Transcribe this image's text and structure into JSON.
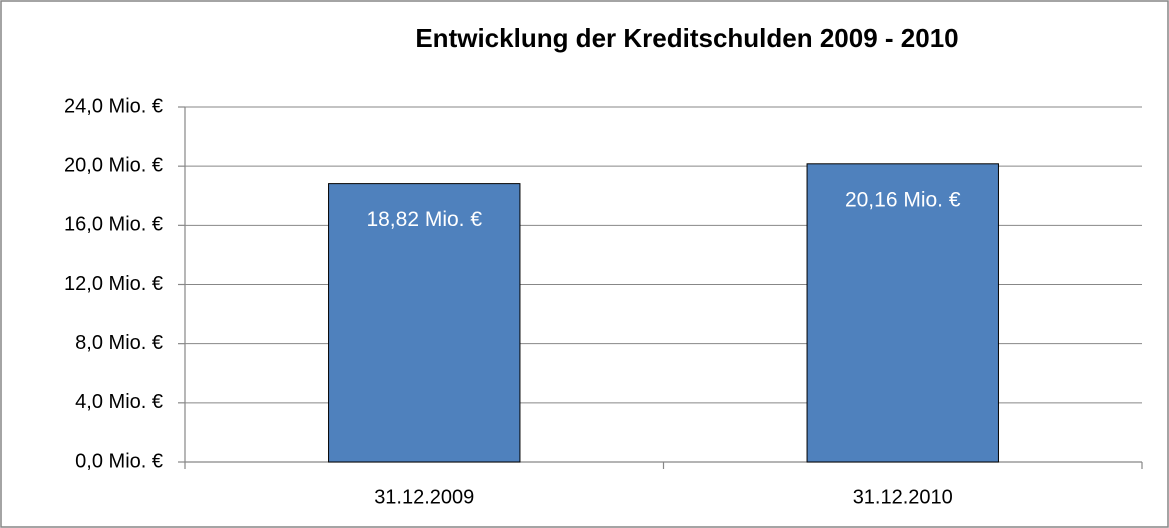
{
  "chart_data": {
    "type": "bar",
    "title": "Entwicklung der Kreditschulden 2009 - 2010",
    "categories": [
      "31.12.2009",
      "31.12.2010"
    ],
    "values": [
      18.82,
      20.16
    ],
    "value_labels": [
      "18,82 Mio. €",
      "20,16 Mio. €"
    ],
    "color": "#4f81bd",
    "ylim": [
      0,
      24
    ],
    "yticks": [
      {
        "value": 0,
        "label": "0,0 Mio. €"
      },
      {
        "value": 4,
        "label": "4,0 Mio. €"
      },
      {
        "value": 8,
        "label": "8,0 Mio. €"
      },
      {
        "value": 12,
        "label": "12,0 Mio. €"
      },
      {
        "value": 16,
        "label": "16,0 Mio. €"
      },
      {
        "value": 20,
        "label": "20,0 Mio. €"
      },
      {
        "value": 24,
        "label": "24,0 Mio. €"
      }
    ],
    "grid": true
  }
}
